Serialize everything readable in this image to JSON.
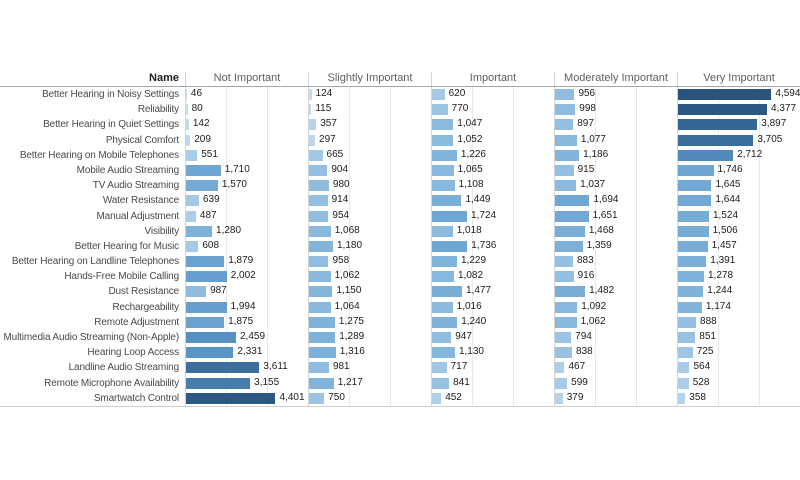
{
  "chart_data": {
    "type": "bar",
    "title": "",
    "name_header": "Name",
    "legend": "none",
    "grid": "vertical-faint",
    "xlim": [
      0,
      6000
    ],
    "gridlines": [
      2000,
      4000
    ],
    "value_format": "thousands-comma",
    "color_scale": {
      "description": "sequential blue ramp mapped to bar value",
      "domain": [
        0,
        4600
      ],
      "stops": [
        "#cde0f1",
        "#84b6dc",
        "#5b96c8",
        "#3f74a4",
        "#27537c"
      ]
    },
    "categories": [
      "Better Hearing in Noisy Settings",
      "Reliability",
      "Better Hearing in Quiet Settings",
      "Physical Comfort",
      "Better Hearing on Mobile Telephones",
      "Mobile Audio Streaming",
      "TV Audio Streaming",
      "Water Resistance",
      "Manual Adjustment",
      "Visibility",
      "Better Hearing for Music",
      "Better Hearing on Landline Telephones",
      "Hands-Free Mobile Calling",
      "Dust Resistance",
      "Rechargeability",
      "Remote Adjustment",
      "Multimedia Audio Streaming (Non-Apple)",
      "Hearing Loop Access",
      "Landline Audio Streaming",
      "Remote Microphone Availability",
      "Smartwatch Control"
    ],
    "series": [
      {
        "name": "Not Important",
        "values": [
          46,
          80,
          142,
          209,
          551,
          1710,
          1570,
          639,
          487,
          1280,
          608,
          1879,
          2002,
          987,
          1994,
          1875,
          2459,
          2331,
          3611,
          3155,
          4401
        ]
      },
      {
        "name": "Slightly Important",
        "values": [
          124,
          115,
          357,
          297,
          665,
          904,
          980,
          914,
          954,
          1068,
          1180,
          958,
          1062,
          1150,
          1064,
          1275,
          1289,
          1316,
          981,
          1217,
          750
        ]
      },
      {
        "name": "Important",
        "values": [
          620,
          770,
          1047,
          1052,
          1226,
          1065,
          1108,
          1449,
          1724,
          1018,
          1736,
          1229,
          1082,
          1477,
          1016,
          1240,
          947,
          1130,
          717,
          841,
          452
        ]
      },
      {
        "name": "Moderately Important",
        "values": [
          956,
          998,
          897,
          1077,
          1186,
          915,
          1037,
          1694,
          1651,
          1468,
          1359,
          883,
          916,
          1482,
          1092,
          1062,
          794,
          838,
          467,
          599,
          379
        ]
      },
      {
        "name": "Very Important",
        "values": [
          4594,
          4377,
          3897,
          3705,
          2712,
          1746,
          1645,
          1644,
          1524,
          1506,
          1457,
          1391,
          1278,
          1244,
          1174,
          888,
          851,
          725,
          564,
          528,
          358
        ]
      }
    ]
  },
  "colors": {
    "background": "#ffffff",
    "panel_separator": "#d4d4d4",
    "gridline": "#e9e9e9",
    "header_underline": "#a6a6a6",
    "bottom_border": "#cfcfcf",
    "row_label_text": "#4a4a4a",
    "header_text": "#5f5f5f",
    "value_text": "#1c1c1c"
  }
}
